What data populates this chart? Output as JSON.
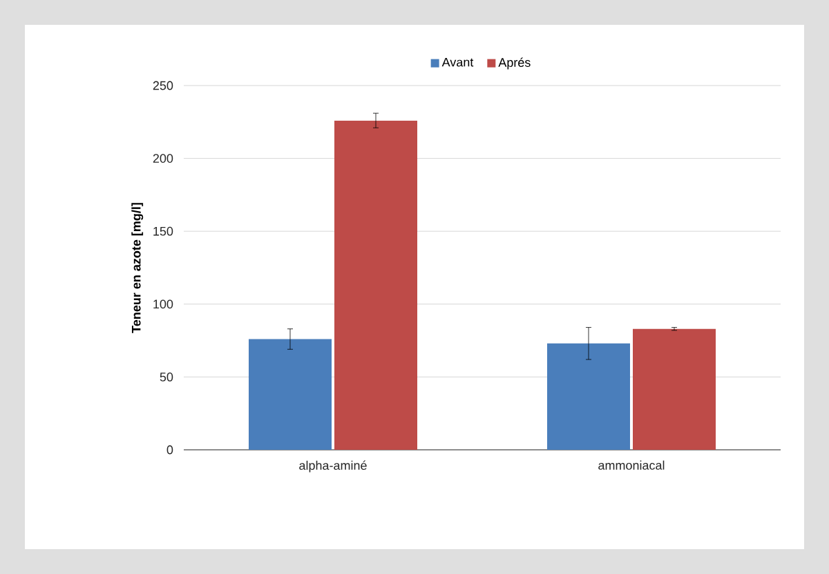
{
  "chart_data": {
    "type": "bar",
    "ylabel": "Teneur en azote [mg/l]",
    "categories": [
      "alpha-aminé",
      "ammoniacal"
    ],
    "series": [
      {
        "name": "Avant",
        "color": "#4a7ebb",
        "values": [
          76,
          73
        ],
        "errors": [
          7,
          11
        ]
      },
      {
        "name": "Aprés",
        "color": "#be4b48",
        "values": [
          226,
          83
        ],
        "errors": [
          5,
          1
        ]
      }
    ],
    "ylim": [
      0,
      250
    ],
    "yticks": [
      0,
      50,
      100,
      150,
      200,
      250
    ],
    "grid": "y",
    "legend": "top"
  }
}
